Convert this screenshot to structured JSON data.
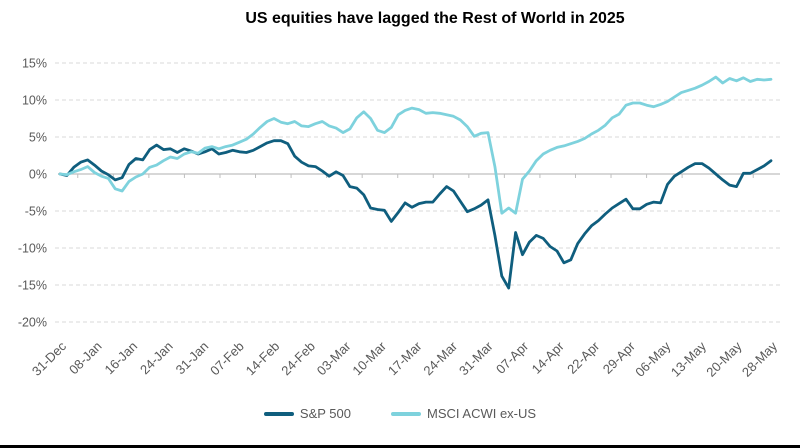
{
  "chart_data": {
    "type": "line",
    "title": "US equities have lagged the Rest of World in 2025",
    "xlabel": "",
    "ylabel": "",
    "y_unit": "%",
    "ylim": [
      -20,
      15
    ],
    "grid": "horizontal-dashed",
    "legend_position": "bottom-center",
    "y_ticks": [
      {
        "label": "15%",
        "value": 15
      },
      {
        "label": "10%",
        "value": 10
      },
      {
        "label": "5%",
        "value": 5
      },
      {
        "label": "0%",
        "value": 0
      },
      {
        "label": "-5%",
        "value": -5
      },
      {
        "label": "-10%",
        "value": -10
      },
      {
        "label": "-15%",
        "value": -15
      },
      {
        "label": "-20%",
        "value": -20
      }
    ],
    "x_tick_labels": [
      "31-Dec",
      "08-Jan",
      "16-Jan",
      "24-Jan",
      "31-Jan",
      "07-Feb",
      "14-Feb",
      "24-Feb",
      "03-Mar",
      "10-Mar",
      "17-Mar",
      "24-Mar",
      "31-Mar",
      "07-Apr",
      "14-Apr",
      "22-Apr",
      "29-Apr",
      "06-May",
      "13-May",
      "20-May",
      "28-May"
    ],
    "series": [
      {
        "name": "S&P 500",
        "color": "#0f5e7e",
        "values": [
          0.0,
          -0.2,
          0.9,
          1.6,
          1.9,
          1.2,
          0.4,
          -0.1,
          -0.8,
          -0.5,
          1.3,
          2.1,
          1.9,
          3.3,
          3.9,
          3.3,
          3.4,
          2.9,
          3.4,
          3.1,
          2.7,
          3.0,
          3.4,
          2.7,
          2.9,
          3.2,
          3.0,
          2.9,
          3.2,
          3.7,
          4.2,
          4.5,
          4.5,
          4.1,
          2.4,
          1.6,
          1.1,
          1.0,
          0.4,
          -0.3,
          0.3,
          -0.2,
          -1.7,
          -1.9,
          -2.8,
          -4.6,
          -4.8,
          -4.9,
          -6.4,
          -5.2,
          -3.9,
          -4.5,
          -4.0,
          -3.8,
          -3.8,
          -2.7,
          -1.7,
          -2.3,
          -3.7,
          -5.1,
          -4.7,
          -4.2,
          -3.5,
          -8.3,
          -13.8,
          -15.4,
          -7.9,
          -10.9,
          -9.2,
          -8.3,
          -8.7,
          -9.8,
          -10.4,
          -12.0,
          -11.6,
          -9.4,
          -8.1,
          -7.0,
          -6.3,
          -5.4,
          -4.6,
          -4.0,
          -3.4,
          -4.7,
          -4.7,
          -4.1,
          -3.8,
          -3.9,
          -1.4,
          -0.3,
          0.3,
          0.9,
          1.4,
          1.4,
          0.8,
          0.0,
          -0.8,
          -1.5,
          -1.7,
          0.1,
          0.1,
          0.6,
          1.1,
          1.8
        ]
      },
      {
        "name": "MSCI ACWI ex-US",
        "color": "#7ed2dd",
        "values": [
          0.0,
          -0.1,
          0.3,
          0.6,
          1.0,
          0.2,
          -0.3,
          -0.6,
          -2.0,
          -2.3,
          -1.0,
          -0.4,
          0.0,
          0.9,
          1.2,
          1.8,
          2.3,
          2.1,
          2.7,
          3.0,
          2.8,
          3.5,
          3.7,
          3.4,
          3.7,
          3.9,
          4.3,
          4.7,
          5.4,
          6.3,
          7.1,
          7.5,
          7.0,
          6.8,
          7.1,
          6.5,
          6.4,
          6.8,
          7.1,
          6.5,
          6.2,
          5.6,
          6.1,
          7.6,
          8.4,
          7.5,
          5.9,
          5.6,
          6.3,
          8.0,
          8.6,
          8.9,
          8.7,
          8.2,
          8.3,
          8.2,
          8.0,
          7.8,
          7.3,
          6.4,
          5.1,
          5.5,
          5.6,
          1.0,
          -5.3,
          -4.6,
          -5.3,
          -0.7,
          0.4,
          1.8,
          2.7,
          3.2,
          3.6,
          3.8,
          4.1,
          4.4,
          4.8,
          5.4,
          5.9,
          6.6,
          7.6,
          8.1,
          9.3,
          9.6,
          9.6,
          9.3,
          9.1,
          9.4,
          9.8,
          10.4,
          11.0,
          11.3,
          11.6,
          12.0,
          12.5,
          13.1,
          12.3,
          12.9,
          12.6,
          13.0,
          12.5,
          12.8,
          12.7,
          12.8
        ]
      }
    ]
  },
  "colors": {
    "gridline": "#d9d9d9",
    "axis_line": "#bfbfbf",
    "axis_text": "#595959",
    "title_text": "#000000",
    "bottom_rule": "#000000",
    "background": "#ffffff"
  }
}
